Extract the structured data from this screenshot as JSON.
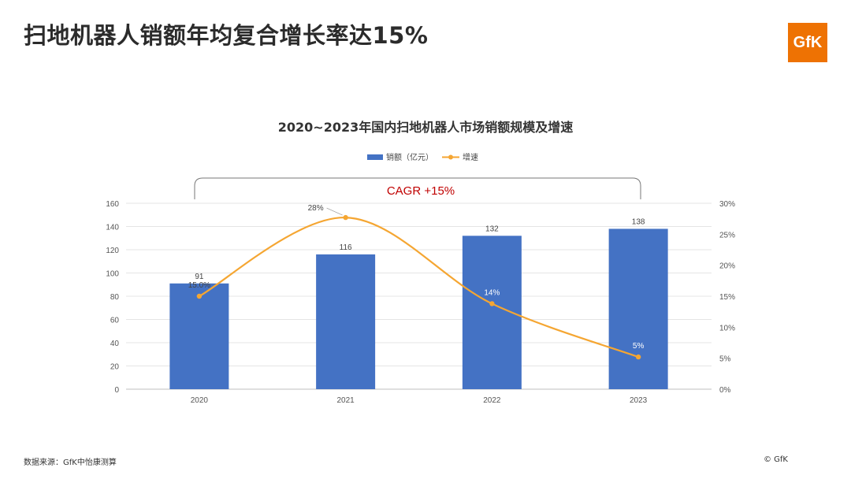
{
  "slide": {
    "title": "扫地机器人销额年均复合增长率达15%",
    "logo_text": "GfK"
  },
  "footer": {
    "source": "数据来源：GfK中怡康测算",
    "copyright": "© GfK"
  },
  "colors": {
    "bar": "#4472c4",
    "line": "#f5a632",
    "cagr": "#c00000",
    "logo": "#ee7203"
  },
  "chart_data": {
    "type": "bar",
    "title": "2020~2023年国内扫地机器人市场销额规模及增速",
    "categories": [
      "2020",
      "2021",
      "2022",
      "2023"
    ],
    "series": [
      {
        "name": "销额（亿元）",
        "type": "bar",
        "axis": "left",
        "values": [
          91,
          116,
          132,
          138
        ],
        "labels": [
          "91",
          "116",
          "132",
          "138"
        ]
      },
      {
        "name": "增速",
        "type": "line",
        "axis": "right",
        "values": [
          15.0,
          27.7,
          13.8,
          5.2
        ],
        "labels": [
          "15.0%",
          "28%",
          "14%",
          "5%"
        ]
      }
    ],
    "y_left": {
      "ylim": [
        0,
        160
      ],
      "ticks": [
        "0",
        "20",
        "40",
        "60",
        "80",
        "100",
        "120",
        "140",
        "160"
      ]
    },
    "y_right": {
      "ylim": [
        0,
        30
      ],
      "ticks": [
        "0%",
        "5%",
        "10%",
        "15%",
        "20%",
        "25%",
        "30%"
      ]
    },
    "annotation": "CAGR +15%",
    "grid": true,
    "legend": "top-center"
  }
}
